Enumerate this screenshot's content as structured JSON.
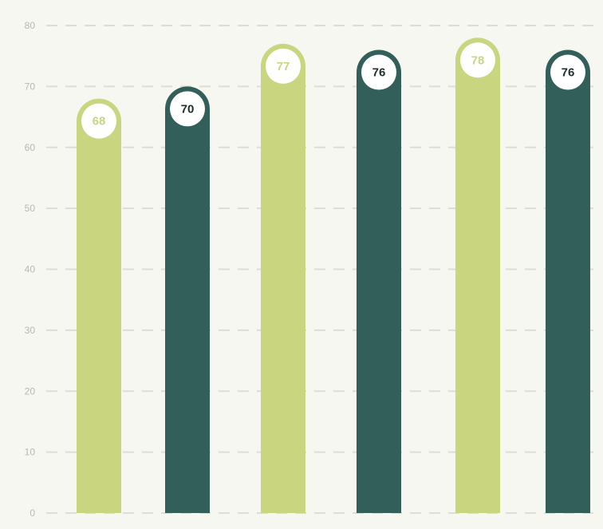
{
  "colors": {
    "background": "#f7f7f2",
    "light_bar": "#c9d57f",
    "dark_bar": "#325f5a",
    "grid": "#ddddd4",
    "tick_text": "#b8b8b0"
  },
  "chart_data": {
    "type": "bar",
    "title": "",
    "xlabel": "",
    "ylabel": "",
    "ylim": [
      0,
      80
    ],
    "y_ticks": [
      0,
      10,
      20,
      30,
      40,
      50,
      60,
      70,
      80
    ],
    "y_tick_labels": [
      "0",
      "10",
      "20",
      "30",
      "40",
      "50",
      "60",
      "70",
      "80"
    ],
    "grid": true,
    "legend": "none",
    "categories": [
      "",
      "",
      "",
      "",
      "",
      ""
    ],
    "values": [
      68,
      70,
      77,
      76,
      78,
      76
    ],
    "value_labels": [
      "68",
      "70",
      "77",
      "76",
      "78",
      "76"
    ],
    "bar_styles": [
      "light",
      "dark",
      "light",
      "dark",
      "light",
      "dark"
    ]
  }
}
